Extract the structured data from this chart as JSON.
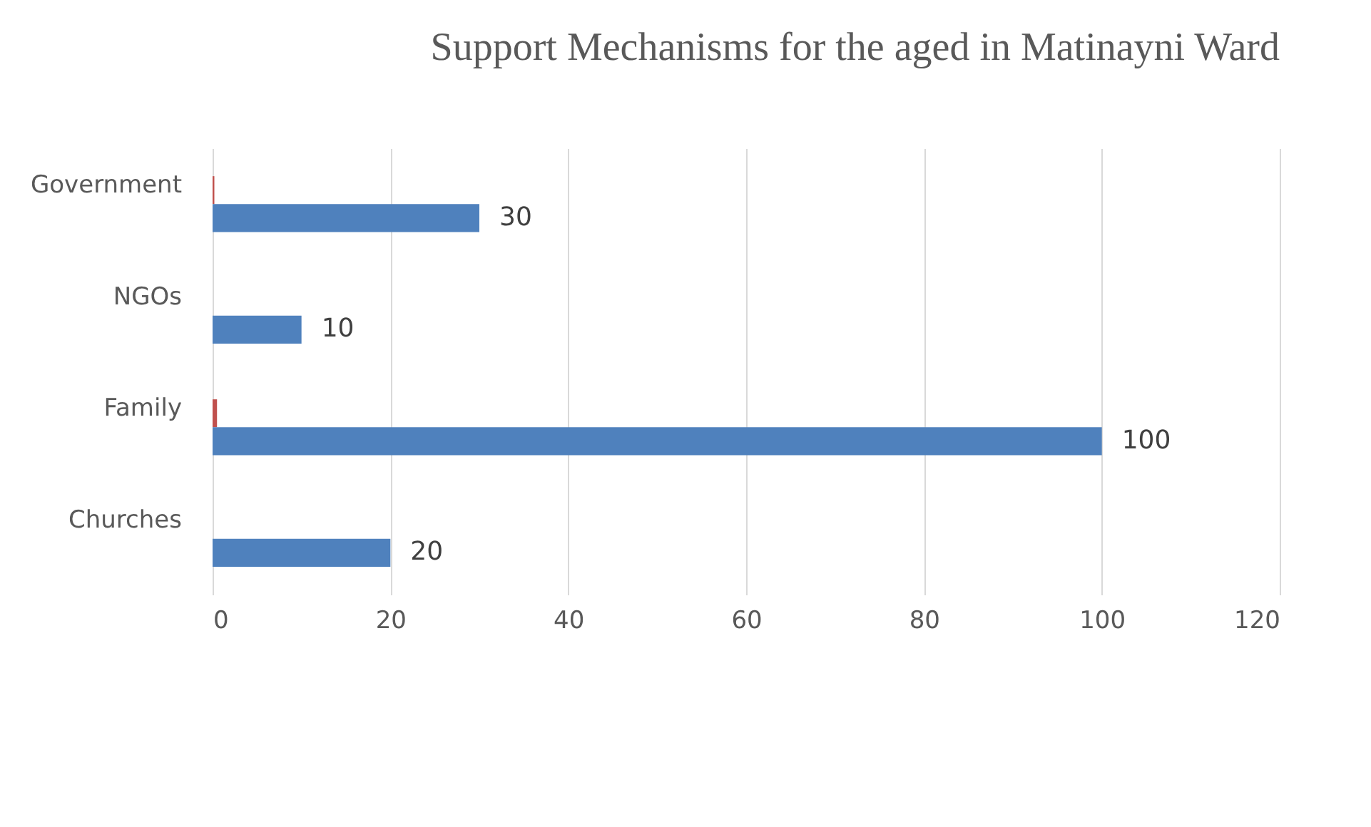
{
  "chart_data": {
    "type": "bar",
    "orientation": "horizontal",
    "title": "Support Mechanisms for the aged in Matinayni Ward",
    "categories": [
      "Government",
      "NGOs",
      "Family",
      "Churches"
    ],
    "series": [
      {
        "color": "#c0504d",
        "values": [
          0.2,
          null,
          0.5,
          null
        ]
      },
      {
        "color": "#4f81bd",
        "values": [
          30,
          10,
          100,
          20
        ],
        "value_labels": [
          "30",
          "10",
          "100",
          "20"
        ]
      }
    ],
    "xlim": [
      0,
      120
    ],
    "xticks": [
      0,
      20,
      40,
      60,
      80,
      100,
      120
    ],
    "grid": "x"
  }
}
